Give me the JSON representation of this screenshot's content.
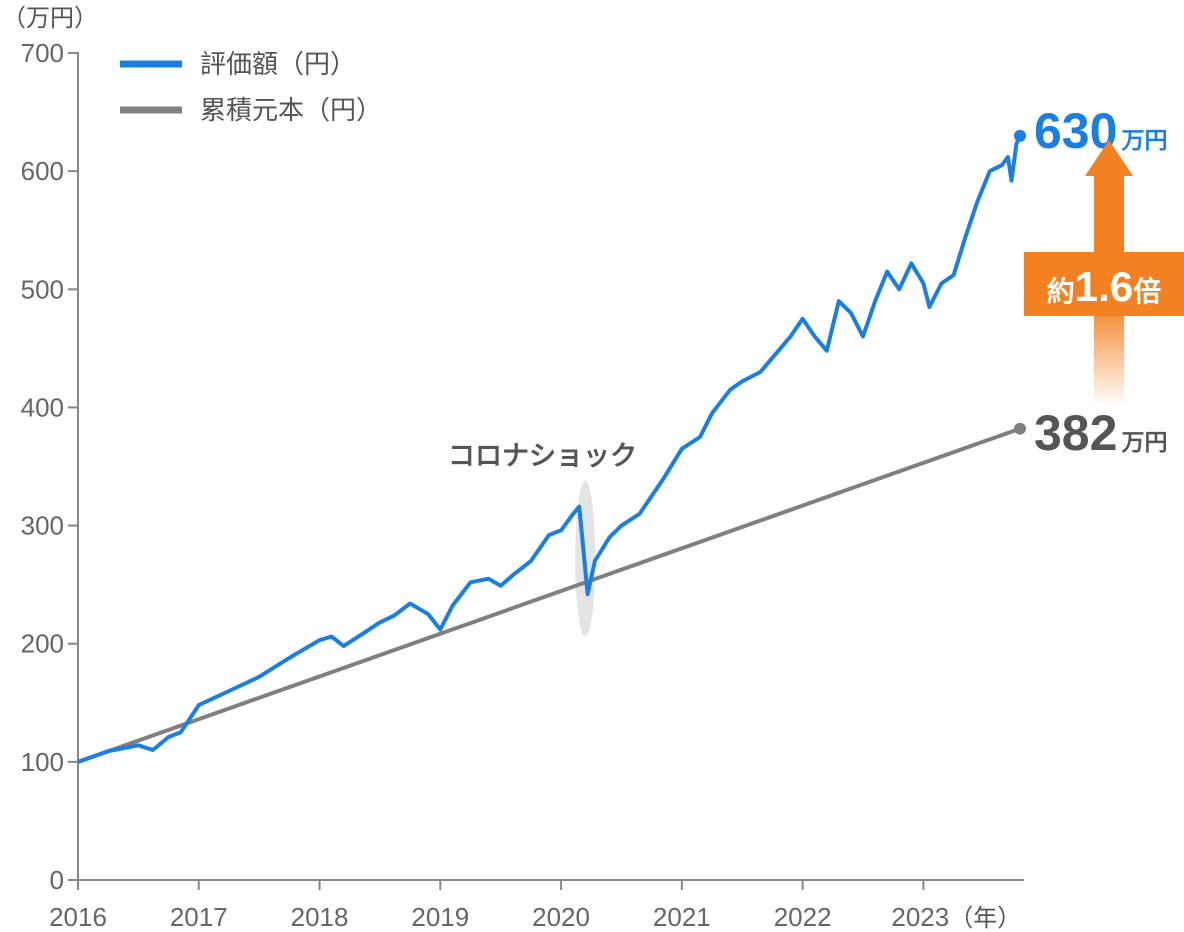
{
  "chart_data": {
    "type": "line",
    "y_unit_label": "（万円）",
    "x_unit_label": "（年）",
    "ylim": [
      0,
      700
    ],
    "yticks": [
      0,
      100,
      200,
      300,
      400,
      500,
      600,
      700
    ],
    "xlim": [
      2016,
      2023.8
    ],
    "xticks": [
      "2016",
      "2017",
      "2018",
      "2019",
      "2020",
      "2021",
      "2022",
      "2023"
    ],
    "grid": false,
    "legend_position": "top-left",
    "series": [
      {
        "name": "評価額（円）",
        "color": "#1a7fe0",
        "points": [
          [
            2016.0,
            100
          ],
          [
            2016.25,
            109
          ],
          [
            2016.5,
            114
          ],
          [
            2016.62,
            110
          ],
          [
            2016.75,
            121
          ],
          [
            2016.85,
            125
          ],
          [
            2017.0,
            148
          ],
          [
            2017.25,
            160
          ],
          [
            2017.5,
            172
          ],
          [
            2017.75,
            188
          ],
          [
            2018.0,
            203
          ],
          [
            2018.1,
            206
          ],
          [
            2018.2,
            198
          ],
          [
            2018.35,
            208
          ],
          [
            2018.5,
            218
          ],
          [
            2018.62,
            224
          ],
          [
            2018.75,
            234
          ],
          [
            2018.9,
            225
          ],
          [
            2019.0,
            212
          ],
          [
            2019.1,
            232
          ],
          [
            2019.25,
            252
          ],
          [
            2019.4,
            255
          ],
          [
            2019.5,
            249
          ],
          [
            2019.6,
            258
          ],
          [
            2019.75,
            270
          ],
          [
            2019.9,
            292
          ],
          [
            2020.0,
            296
          ],
          [
            2020.1,
            310
          ],
          [
            2020.15,
            316
          ],
          [
            2020.18,
            285
          ],
          [
            2020.22,
            242
          ],
          [
            2020.28,
            270
          ],
          [
            2020.4,
            290
          ],
          [
            2020.5,
            300
          ],
          [
            2020.65,
            310
          ],
          [
            2020.85,
            340
          ],
          [
            2021.0,
            365
          ],
          [
            2021.15,
            375
          ],
          [
            2021.25,
            395
          ],
          [
            2021.4,
            415
          ],
          [
            2021.5,
            422
          ],
          [
            2021.65,
            430
          ],
          [
            2021.8,
            448
          ],
          [
            2021.9,
            460
          ],
          [
            2022.0,
            475
          ],
          [
            2022.1,
            460
          ],
          [
            2022.2,
            448
          ],
          [
            2022.3,
            490
          ],
          [
            2022.4,
            480
          ],
          [
            2022.5,
            460
          ],
          [
            2022.6,
            490
          ],
          [
            2022.7,
            515
          ],
          [
            2022.8,
            500
          ],
          [
            2022.9,
            522
          ],
          [
            2023.0,
            505
          ],
          [
            2023.05,
            485
          ],
          [
            2023.15,
            505
          ],
          [
            2023.25,
            512
          ],
          [
            2023.35,
            545
          ],
          [
            2023.45,
            575
          ],
          [
            2023.55,
            600
          ],
          [
            2023.65,
            605
          ],
          [
            2023.7,
            612
          ],
          [
            2023.73,
            592
          ],
          [
            2023.77,
            623
          ],
          [
            2023.8,
            630
          ]
        ]
      },
      {
        "name": "累積元本（円）",
        "color": "#808080",
        "points": [
          [
            2016.0,
            100
          ],
          [
            2023.8,
            382
          ]
        ]
      }
    ],
    "annotations": {
      "event_label": "コロナショック",
      "event_x": 2020.2,
      "end_value_label": "630",
      "end_value_unit": "万円",
      "principal_value_label": "382",
      "principal_value_unit": "万円",
      "ratio_prefix": "約",
      "ratio_value": "1.6",
      "ratio_suffix": "倍",
      "ratio_color": "#f38121"
    }
  }
}
